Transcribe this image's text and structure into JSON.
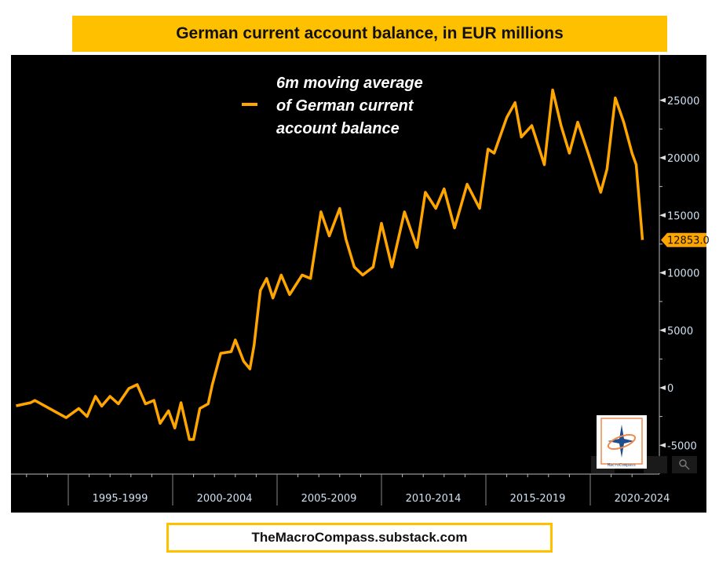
{
  "chart_data": {
    "type": "line",
    "title": "German current account balance, in EUR millions",
    "xlabel": "",
    "ylabel": "",
    "ylim": [
      -7000,
      28000
    ],
    "y_ticks": [
      -5000,
      0,
      5000,
      10000,
      15000,
      20000,
      25000
    ],
    "x_tick_labels": [
      "1995-1999",
      "2000-2004",
      "2005-2009",
      "2010-2014",
      "2015-2019",
      "2020-2024"
    ],
    "legend": {
      "label_lines": [
        "6m moving average",
        "of German current",
        "account balance"
      ],
      "placement": "top-center"
    },
    "last_value_label": "12853.0",
    "color": "#ffa500",
    "series": [
      {
        "name": "6m moving average of German current account balance",
        "x": [
          1992.5,
          1993.2,
          1993.4,
          1994.4,
          1994.9,
          1995.5,
          1995.9,
          1996.3,
          1996.6,
          1997.0,
          1997.4,
          1997.9,
          1998.3,
          1998.7,
          1999.1,
          1999.4,
          1999.8,
          2000.1,
          2000.4,
          2000.8,
          2001.0,
          2001.3,
          2001.7,
          2001.9,
          2002.3,
          2002.8,
          2003.0,
          2003.4,
          2003.7,
          2003.9,
          2004.2,
          2004.5,
          2004.8,
          2005.2,
          2005.6,
          2006.2,
          2006.6,
          2007.1,
          2007.5,
          2008.0,
          2008.3,
          2008.7,
          2009.1,
          2009.6,
          2010.0,
          2010.5,
          2011.1,
          2011.7,
          2012.1,
          2012.6,
          2013.0,
          2013.5,
          2014.1,
          2014.7,
          2015.1,
          2015.4,
          2016.0,
          2016.4,
          2016.7,
          2017.2,
          2017.8,
          2018.2,
          2018.6,
          2019.0,
          2019.4,
          2019.9,
          2020.5,
          2020.8,
          2021.2,
          2021.6,
          2022.0,
          2022.2,
          2022.5
        ],
        "y": [
          -1570,
          -1300,
          -1100,
          -2100,
          -2600,
          -1800,
          -2500,
          -750,
          -1600,
          -750,
          -1400,
          -70,
          270,
          -1400,
          -1100,
          -3100,
          -2000,
          -3500,
          -1300,
          -4500,
          -4500,
          -1800,
          -1400,
          270,
          3000,
          3140,
          4160,
          2300,
          1640,
          3700,
          8460,
          9500,
          7800,
          9800,
          8100,
          9800,
          9500,
          15300,
          13200,
          15600,
          12900,
          10500,
          9800,
          10500,
          14300,
          10500,
          15300,
          12200,
          17000,
          15600,
          17300,
          13900,
          17700,
          15600,
          20750,
          20400,
          23500,
          24800,
          21800,
          22800,
          19400,
          25900,
          22800,
          20400,
          23100,
          20400,
          17000,
          19000,
          25200,
          23100,
          20400,
          19400,
          12853
        ]
      }
    ]
  },
  "footer": "TheMacroCompass.substack.com",
  "logo_text": "The MacroCompass"
}
